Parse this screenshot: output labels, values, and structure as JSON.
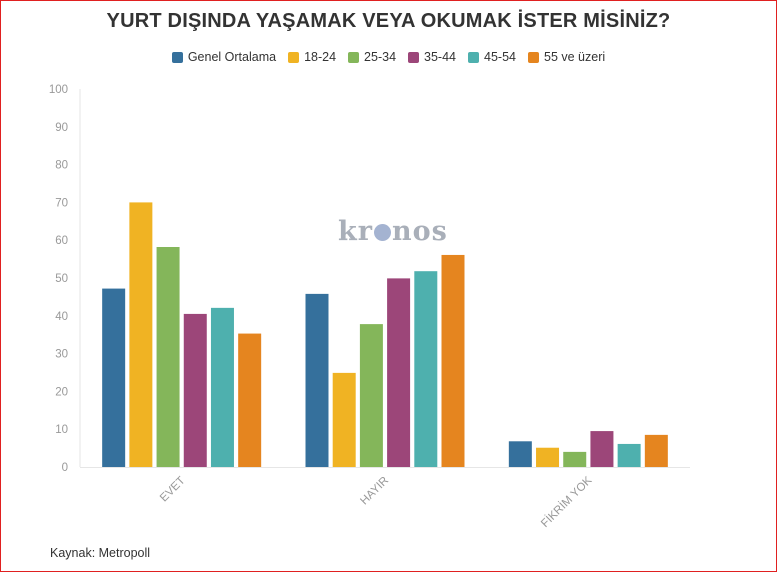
{
  "chart_data": {
    "type": "bar",
    "title": "YURT DIŞINDA YAŞAMAK VEYA OKUMAK İSTER MİSİNİZ?",
    "categories": [
      "EVET",
      "HAYIR",
      "FİKRİM YOK"
    ],
    "ylim": [
      0,
      100
    ],
    "yticks": [
      "0",
      "10",
      "20",
      "30",
      "40",
      "50",
      "60",
      "70",
      "80",
      "90",
      "100"
    ],
    "legend_position": "top-center",
    "grid": false,
    "series": [
      {
        "name": "Genel Ortalama",
        "color": "#35709c",
        "values": [
          47.2,
          45.8,
          6.8
        ]
      },
      {
        "name": "18-24",
        "color": "#f0b323",
        "values": [
          70.0,
          24.9,
          5.1
        ]
      },
      {
        "name": "25-34",
        "color": "#84b65a",
        "values": [
          58.2,
          37.8,
          4.0
        ]
      },
      {
        "name": "35-44",
        "color": "#9c4679",
        "values": [
          40.5,
          49.9,
          9.5
        ]
      },
      {
        "name": "45-54",
        "color": "#4eb0ae",
        "values": [
          42.1,
          51.8,
          6.1
        ]
      },
      {
        "name": "55 ve üzeri",
        "color": "#e5851f",
        "values": [
          35.3,
          56.1,
          8.5
        ]
      }
    ]
  },
  "source_text": "Kaynak: Metropoll",
  "watermark": {
    "prefix": "kr",
    "suffix": "nos"
  }
}
